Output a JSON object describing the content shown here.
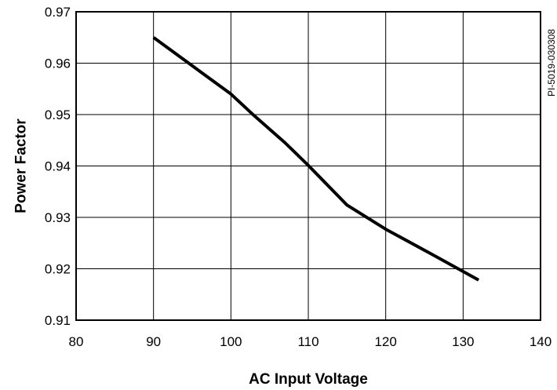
{
  "chart_data": {
    "type": "line",
    "xlabel": "AC Input Voltage",
    "ylabel": "Power Factor",
    "side_note": "PI-5019-030308",
    "xlim": [
      80,
      140
    ],
    "ylim": [
      0.91,
      0.97
    ],
    "x_ticks": [
      "80",
      "90",
      "100",
      "110",
      "120",
      "130",
      "140"
    ],
    "y_ticks": [
      "0.97",
      "0.96",
      "0.95",
      "0.94",
      "0.93",
      "0.92",
      "0.91"
    ],
    "grid": true,
    "series": [
      {
        "x": [
          90,
          95,
          100,
          103,
          107,
          110,
          115,
          120,
          126,
          132
        ],
        "y": [
          0.965,
          0.9595,
          0.954,
          0.9498,
          0.9445,
          0.9401,
          0.9324,
          0.9277,
          0.9228,
          0.9178
        ]
      }
    ]
  }
}
